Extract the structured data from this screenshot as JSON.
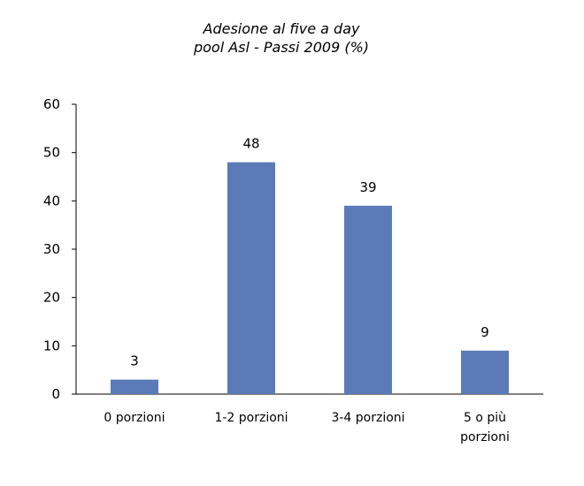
{
  "chart_data": {
    "type": "bar",
    "title": "Adesione al five a day",
    "subtitle": "pool Asl - Passi 2009 (%)",
    "categories": [
      [
        "0 porzioni"
      ],
      [
        "1-2 porzioni"
      ],
      [
        "3-4 porzioni"
      ],
      [
        "5 o più",
        "porzioni"
      ]
    ],
    "values": [
      3,
      48,
      39,
      9
    ],
    "data_labels": [
      "3",
      "48",
      "39",
      "9"
    ],
    "xlabel": "",
    "ylabel": "",
    "ylim": [
      0,
      60
    ],
    "yticks": [
      0,
      10,
      20,
      30,
      40,
      50,
      60
    ],
    "grid": false,
    "legend": "none",
    "bar_color": "#5b7bb8"
  }
}
